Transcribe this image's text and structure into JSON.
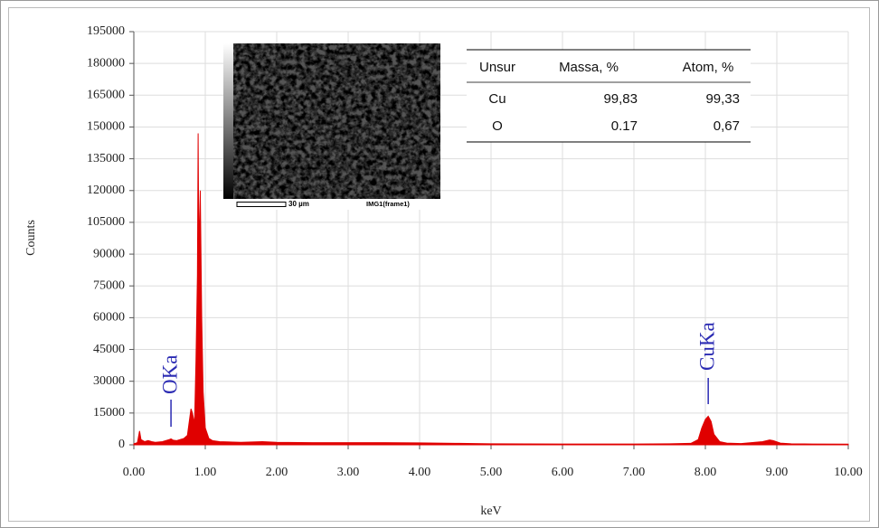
{
  "chart_data": {
    "type": "area",
    "x_label": "keV",
    "y_label": "Counts",
    "color": "#e00000",
    "grid": true,
    "xlim": [
      0,
      10
    ],
    "ylim": [
      0,
      195000
    ],
    "xticks": [
      {
        "value": 0,
        "label": "0.00"
      },
      {
        "value": 1,
        "label": "1.00"
      },
      {
        "value": 2,
        "label": "2.00"
      },
      {
        "value": 3,
        "label": "3.00"
      },
      {
        "value": 4,
        "label": "4.00"
      },
      {
        "value": 5,
        "label": "5.00"
      },
      {
        "value": 6,
        "label": "6.00"
      },
      {
        "value": 7,
        "label": "7.00"
      },
      {
        "value": 8,
        "label": "8.00"
      },
      {
        "value": 9,
        "label": "9.00"
      },
      {
        "value": 10,
        "label": "10.00"
      }
    ],
    "yticks": [
      0,
      15000,
      30000,
      45000,
      60000,
      75000,
      90000,
      105000,
      120000,
      135000,
      150000,
      165000,
      180000,
      195000
    ],
    "x": [
      0,
      0.05,
      0.08,
      0.1,
      0.15,
      0.2,
      0.25,
      0.3,
      0.4,
      0.5,
      0.52,
      0.55,
      0.6,
      0.7,
      0.75,
      0.8,
      0.82,
      0.85,
      0.87,
      0.89,
      0.9,
      0.91,
      0.93,
      0.95,
      0.97,
      1.0,
      1.05,
      1.1,
      1.2,
      1.5,
      1.8,
      2.0,
      2.5,
      3.0,
      3.5,
      4.0,
      4.5,
      5.0,
      6.0,
      7.0,
      7.5,
      7.8,
      7.9,
      7.95,
      8.0,
      8.04,
      8.08,
      8.12,
      8.2,
      8.3,
      8.5,
      8.8,
      8.9,
      8.95,
      9.05,
      9.2,
      9.5,
      10.0
    ],
    "values": [
      500,
      1000,
      6500,
      2500,
      1500,
      2000,
      1500,
      1200,
      1500,
      2500,
      2800,
      2200,
      2000,
      3000,
      4500,
      17000,
      15000,
      10000,
      40000,
      80000,
      147000,
      90000,
      120000,
      60000,
      25000,
      8000,
      3000,
      2000,
      1500,
      1200,
      1500,
      1200,
      1000,
      1000,
      1000,
      900,
      700,
      500,
      400,
      400,
      500,
      700,
      2500,
      8000,
      12000,
      13500,
      11000,
      5000,
      1500,
      800,
      600,
      1500,
      2300,
      2000,
      800,
      500,
      400,
      300
    ],
    "annotations": [
      {
        "text": "OKa",
        "x": 0.52,
        "color": "#2b2bb3"
      },
      {
        "text": "CuKa",
        "x": 8.04,
        "color": "#2b2bb3"
      }
    ],
    "inset": {
      "scale_label": "30 µm",
      "caption": "IMG1(frame1)"
    },
    "table": {
      "columns": [
        "Unsur",
        "Massa, %",
        "Atom, %"
      ],
      "rows": [
        [
          "Cu",
          "99,83",
          "99,33"
        ],
        [
          "O",
          "0.17",
          "0,67"
        ]
      ]
    }
  }
}
